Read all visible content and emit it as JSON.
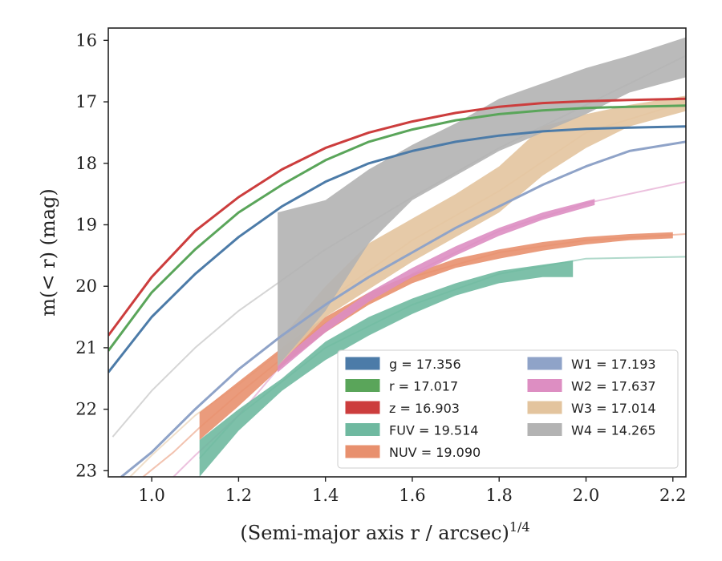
{
  "chart_data": {
    "type": "line",
    "xlabel": "(Semi-major axis r / arcsec)",
    "xlabel_exponent": "1/4",
    "ylabel": "m(< r) (mag)",
    "xlim": [
      0.9,
      2.23
    ],
    "ylim": [
      23.1,
      15.8
    ],
    "y_inverted": true,
    "grid": false,
    "legend_placement": "lower-right",
    "xticks": [
      "1.0",
      "1.2",
      "1.4",
      "1.6",
      "1.8",
      "2.0",
      "2.2"
    ],
    "yticks": [
      "16",
      "17",
      "18",
      "19",
      "20",
      "21",
      "22",
      "23"
    ],
    "series": [
      {
        "name": "g = 17.356",
        "color": "#4c7ba8",
        "kind": "curve",
        "x": [
          0.9,
          1.0,
          1.1,
          1.2,
          1.3,
          1.4,
          1.5,
          1.6,
          1.7,
          1.8,
          1.9,
          2.0,
          2.1,
          2.23
        ],
        "y": [
          21.4,
          20.5,
          19.8,
          19.2,
          18.7,
          18.3,
          18.0,
          17.8,
          17.65,
          17.55,
          17.48,
          17.44,
          17.42,
          17.4
        ]
      },
      {
        "name": "r = 17.017",
        "color": "#5aa55a",
        "kind": "curve",
        "x": [
          0.9,
          1.0,
          1.1,
          1.2,
          1.3,
          1.4,
          1.5,
          1.6,
          1.7,
          1.8,
          1.9,
          2.0,
          2.1,
          2.23
        ],
        "y": [
          21.05,
          20.1,
          19.4,
          18.8,
          18.35,
          17.95,
          17.65,
          17.45,
          17.3,
          17.2,
          17.14,
          17.1,
          17.08,
          17.06
        ]
      },
      {
        "name": "z = 16.903",
        "color": "#cc3d3d",
        "kind": "curve",
        "x": [
          0.9,
          1.0,
          1.1,
          1.2,
          1.3,
          1.4,
          1.5,
          1.6,
          1.7,
          1.8,
          1.9,
          2.0,
          2.1,
          2.23
        ],
        "y": [
          20.8,
          19.85,
          19.1,
          18.55,
          18.1,
          17.75,
          17.5,
          17.32,
          17.18,
          17.08,
          17.02,
          16.99,
          16.97,
          16.95
        ]
      },
      {
        "name": "FUV = 19.514",
        "color": "#6fb9a0",
        "kind": "band",
        "x": [
          1.11,
          1.2,
          1.3,
          1.4,
          1.5,
          1.6,
          1.7,
          1.8,
          1.9,
          1.97
        ],
        "lower": [
          22.5,
          22.0,
          21.5,
          20.9,
          20.5,
          20.2,
          19.95,
          19.75,
          19.65,
          19.58
        ],
        "upper": [
          23.1,
          22.35,
          21.7,
          21.2,
          20.8,
          20.45,
          20.15,
          19.95,
          19.85,
          19.85
        ]
      },
      {
        "name": "NUV = 19.090",
        "color": "#e8906e",
        "kind": "band",
        "x": [
          1.11,
          1.2,
          1.3,
          1.4,
          1.5,
          1.6,
          1.7,
          1.8,
          1.9,
          2.0,
          2.1,
          2.2
        ],
        "lower": [
          22.05,
          21.55,
          21.0,
          20.5,
          20.1,
          19.8,
          19.55,
          19.4,
          19.28,
          19.2,
          19.15,
          19.12
        ],
        "upper": [
          22.5,
          21.95,
          21.3,
          20.75,
          20.3,
          19.95,
          19.7,
          19.55,
          19.42,
          19.32,
          19.25,
          19.22
        ]
      },
      {
        "name": "W1 = 17.193",
        "color": "#8fa3c8",
        "kind": "curve",
        "x": [
          0.93,
          1.0,
          1.1,
          1.2,
          1.3,
          1.4,
          1.5,
          1.6,
          1.7,
          1.8,
          1.9,
          2.0,
          2.1,
          2.23
        ],
        "y": [
          23.1,
          22.7,
          22.0,
          21.35,
          20.8,
          20.3,
          19.85,
          19.45,
          19.05,
          18.7,
          18.35,
          18.05,
          17.8,
          17.65
        ]
      },
      {
        "name": "W2 = 17.637",
        "color": "#dd8ec2",
        "kind": "band",
        "x": [
          1.29,
          1.4,
          1.5,
          1.6,
          1.7,
          1.8,
          1.9,
          2.02
        ],
        "lower": [
          21.25,
          20.6,
          20.1,
          19.7,
          19.35,
          19.05,
          18.8,
          18.58
        ],
        "upper": [
          21.4,
          20.75,
          20.25,
          19.85,
          19.5,
          19.18,
          18.92,
          18.68
        ]
      },
      {
        "name": "W3 = 17.014",
        "color": "#e3c49e",
        "kind": "band",
        "x": [
          1.29,
          1.4,
          1.5,
          1.6,
          1.7,
          1.8,
          1.9,
          2.0,
          2.1,
          2.23
        ],
        "lower": [
          20.9,
          20.0,
          19.3,
          18.9,
          18.5,
          18.05,
          17.4,
          17.2,
          17.05,
          16.9
        ],
        "upper": [
          21.3,
          20.5,
          20.05,
          19.6,
          19.2,
          18.8,
          18.2,
          17.75,
          17.4,
          17.15
        ]
      },
      {
        "name": "W4 = 14.265",
        "color": "#b3b3b3",
        "kind": "band",
        "x": [
          1.29,
          1.4,
          1.5,
          1.6,
          1.7,
          1.8,
          1.9,
          2.0,
          2.1,
          2.23
        ],
        "lower": [
          18.8,
          18.6,
          18.1,
          17.7,
          17.35,
          16.95,
          16.7,
          16.45,
          16.25,
          15.95
        ],
        "upper": [
          21.3,
          20.4,
          19.3,
          18.6,
          18.2,
          17.8,
          17.5,
          17.2,
          16.85,
          16.6
        ]
      }
    ],
    "extrapolations": [
      {
        "color": "#6fb9a0",
        "x": [
          1.11,
          1.2,
          1.4,
          1.6,
          1.8,
          2.0,
          2.23
        ],
        "y": [
          22.8,
          22.1,
          21.0,
          20.3,
          19.8,
          19.55,
          19.52
        ]
      },
      {
        "color": "#e8906e",
        "x": [
          0.98,
          1.05,
          1.11,
          1.2,
          1.4,
          1.6,
          1.8,
          2.0,
          2.23
        ],
        "y": [
          23.1,
          22.7,
          22.3,
          21.75,
          20.6,
          19.85,
          19.45,
          19.25,
          19.15
        ]
      },
      {
        "color": "#dd8ec2",
        "x": [
          1.05,
          1.1,
          1.2,
          1.29,
          1.4,
          1.6,
          1.8,
          2.0,
          2.23
        ],
        "y": [
          23.1,
          22.75,
          22.1,
          21.35,
          20.65,
          19.8,
          19.1,
          18.65,
          18.3
        ]
      },
      {
        "color": "#e3c49e",
        "x": [
          0.95,
          1.0,
          1.1,
          1.2,
          1.29,
          1.4,
          1.6,
          1.8,
          2.0,
          2.23
        ],
        "y": [
          23.1,
          22.75,
          22.1,
          21.6,
          21.1,
          20.25,
          19.25,
          18.45,
          17.5,
          17.0
        ]
      },
      {
        "color": "#b3b3b3",
        "x": [
          0.91,
          1.0,
          1.1,
          1.2,
          1.29,
          1.4,
          1.6,
          1.8,
          2.0,
          2.23
        ],
        "y": [
          22.45,
          21.7,
          21.0,
          20.4,
          19.95,
          19.4,
          18.55,
          17.75,
          17.05,
          16.25
        ]
      }
    ]
  }
}
